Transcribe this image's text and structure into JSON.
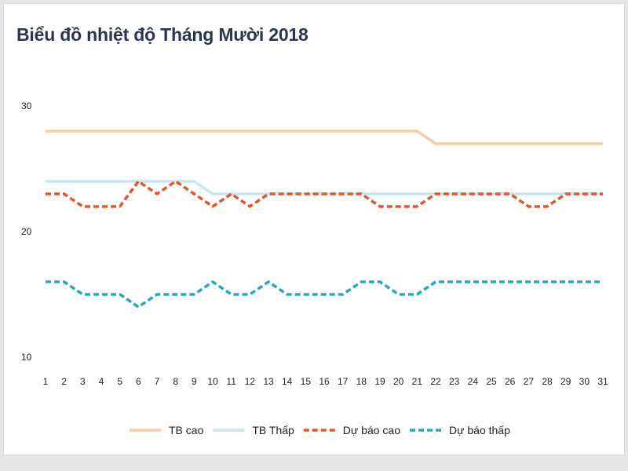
{
  "chart_data": {
    "type": "line",
    "title": "Biểu đồ nhiệt độ Tháng Mười 2018",
    "xlabel": "",
    "ylabel": "",
    "x": [
      1,
      2,
      3,
      4,
      5,
      6,
      7,
      8,
      9,
      10,
      11,
      12,
      13,
      14,
      15,
      16,
      17,
      18,
      19,
      20,
      21,
      22,
      23,
      24,
      25,
      26,
      27,
      28,
      29,
      30,
      31
    ],
    "x_tick_labels": [
      "1",
      "2",
      "3",
      "4",
      "5",
      "6",
      "7",
      "8",
      "9",
      "10",
      "11",
      "12",
      "13",
      "14",
      "15",
      "16",
      "17",
      "18",
      "19",
      "20",
      "21",
      "22",
      "23",
      "24",
      "25",
      "26",
      "27",
      "28",
      "29",
      "30",
      "31"
    ],
    "y_ticks": [
      30,
      20,
      10
    ],
    "ylim": [
      10,
      30
    ],
    "grid": false,
    "legend_position": "bottom-center",
    "series": [
      {
        "name": "TB cao",
        "color": "#f9cba1",
        "style": "solid",
        "values": [
          28,
          28,
          28,
          28,
          28,
          28,
          28,
          28,
          28,
          28,
          28,
          28,
          28,
          28,
          28,
          28,
          28,
          28,
          28,
          28,
          28,
          27,
          27,
          27,
          27,
          27,
          27,
          27,
          27,
          27,
          27
        ]
      },
      {
        "name": "TB Thấp",
        "color": "#c9e6f0",
        "style": "solid",
        "values": [
          24,
          24,
          24,
          24,
          24,
          24,
          24,
          24,
          24,
          23,
          23,
          23,
          23,
          23,
          23,
          23,
          23,
          23,
          23,
          23,
          23,
          23,
          23,
          23,
          23,
          23,
          23,
          23,
          23,
          23,
          23
        ]
      },
      {
        "name": "Dự báo cao",
        "color": "#e2562c",
        "style": "dashed",
        "values": [
          23,
          23,
          22,
          22,
          22,
          24,
          23,
          24,
          23,
          22,
          23,
          22,
          23,
          23,
          23,
          23,
          23,
          23,
          22,
          22,
          22,
          23,
          23,
          23,
          23,
          23,
          22,
          22,
          23,
          23,
          23
        ]
      },
      {
        "name": "Dự báo thấp",
        "color": "#26a9bd",
        "style": "dashed",
        "values": [
          16,
          16,
          15,
          15,
          15,
          14,
          15,
          15,
          15,
          16,
          15,
          15,
          16,
          15,
          15,
          15,
          15,
          16,
          16,
          15,
          15,
          16,
          16,
          16,
          16,
          16,
          16,
          16,
          16,
          16,
          16
        ]
      }
    ]
  }
}
